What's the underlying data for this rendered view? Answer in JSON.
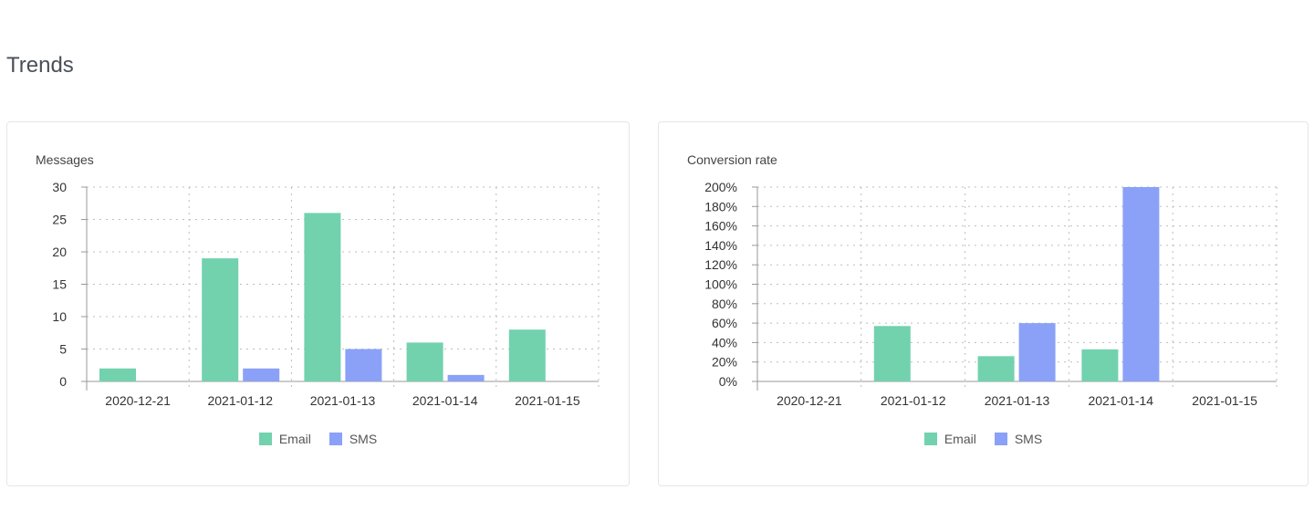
{
  "page": {
    "section_title": "Trends"
  },
  "colors": {
    "email": "#72d2ae",
    "sms": "#8aa1f7",
    "grid": "#bdbdbd",
    "axis": "#999999"
  },
  "chart_data": [
    {
      "id": "messages",
      "type": "bar",
      "title": "Messages",
      "categories": [
        "2020-12-21",
        "2021-01-12",
        "2021-01-13",
        "2021-01-14",
        "2021-01-15"
      ],
      "series": [
        {
          "name": "Email",
          "values": [
            2,
            19,
            26,
            6,
            8
          ]
        },
        {
          "name": "SMS",
          "values": [
            0,
            2,
            5,
            1,
            0
          ]
        }
      ],
      "ylim": [
        0,
        30
      ],
      "yticks": [
        0,
        5,
        10,
        15,
        20,
        25,
        30
      ],
      "ytick_labels": [
        "0",
        "5",
        "10",
        "15",
        "20",
        "25",
        "30"
      ],
      "grid": true,
      "legend_position": "bottom"
    },
    {
      "id": "conversion",
      "type": "bar",
      "title": "Conversion rate",
      "categories": [
        "2020-12-21",
        "2021-01-12",
        "2021-01-13",
        "2021-01-14",
        "2021-01-15"
      ],
      "series": [
        {
          "name": "Email",
          "values": [
            0,
            57,
            26,
            33,
            0
          ]
        },
        {
          "name": "SMS",
          "values": [
            0,
            0,
            60,
            200,
            0
          ]
        }
      ],
      "ylim": [
        0,
        200
      ],
      "yticks": [
        0,
        20,
        40,
        60,
        80,
        100,
        120,
        140,
        160,
        180,
        200
      ],
      "ytick_labels": [
        "0%",
        "20%",
        "40%",
        "60%",
        "80%",
        "100%",
        "120%",
        "140%",
        "160%",
        "180%",
        "200%"
      ],
      "grid": true,
      "legend_position": "bottom"
    }
  ]
}
